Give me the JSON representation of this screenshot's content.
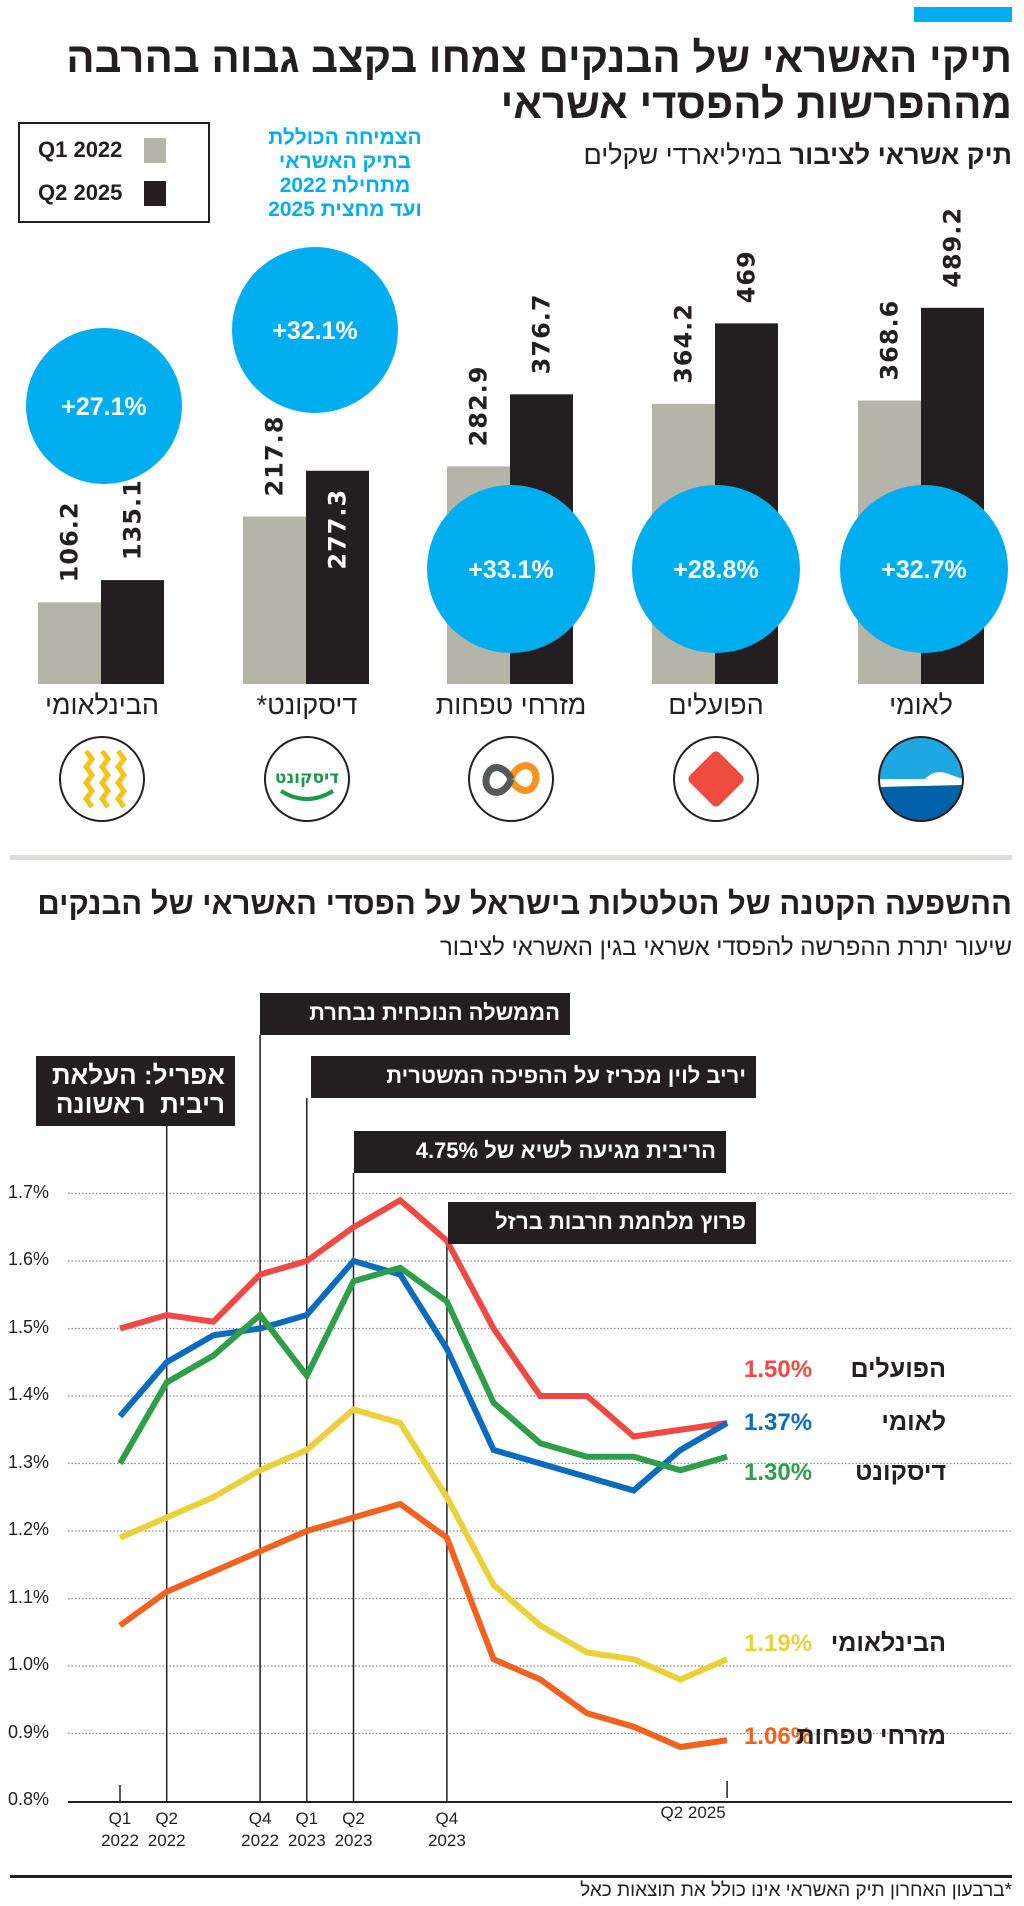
{
  "header": {
    "title_line1": "תיקי האשראי של הבנקים צמחו בקצב גבוה בהרבה",
    "title_line2": "מההפרשות להפסדי אשראי",
    "accent_color": "#00aeef"
  },
  "legend": {
    "items": [
      {
        "label": "Q1 2022",
        "color": "#b4b4a8"
      },
      {
        "label": "Q2 2025",
        "color": "#231f20"
      }
    ]
  },
  "growth_note": [
    "הצמיחה הכוללת",
    "בתיק האשראי",
    "מתחילת 2022",
    "ועד מחצית 2025"
  ],
  "bar_subtitle": {
    "bold": "תיק אשראי לציבור",
    "regular": "במיליארדי שקלים"
  },
  "footnote": "*ברבעון האחרון תיק האשראי אינו כולל את תוצאות כאל",
  "chart_data": [
    {
      "type": "bar",
      "subtitle": "תיק אשראי לציבור במיליארדי שקלים",
      "categories": [
        "לאומי",
        "הפועלים",
        "מזרחי טפחות",
        "דיסקונט*",
        "הבינלאומי"
      ],
      "series": [
        {
          "name": "Q1 2022",
          "values": [
            368.6,
            364.2,
            282.9,
            217.8,
            106.2
          ],
          "labels": [
            "368.6",
            "364.2",
            "282.9",
            "217.8",
            "106.2"
          ],
          "color": "#b4b4a8"
        },
        {
          "name": "Q2 2025",
          "values": [
            489.2,
            469,
            376.7,
            277.3,
            135.1
          ],
          "labels": [
            "489.2",
            "469",
            "376.7",
            "277.3",
            "135.1"
          ],
          "color": "#231f20"
        }
      ],
      "growth_labels": [
        "+32.7%",
        "+28.8%",
        "+33.1%",
        "+32.1%",
        "+27.1%"
      ],
      "logos": [
        {
          "bank": "לאומי",
          "icon": "leumi-wave-logo"
        },
        {
          "bank": "הפועלים",
          "icon": "poalim-red-diamond-logo"
        },
        {
          "bank": "מזרחי טפחות",
          "icon": "mizrahi-infinity-logo"
        },
        {
          "bank": "דיסקונט",
          "icon": "discount-wordmark-logo",
          "lettering": "דיסקונט"
        },
        {
          "bank": "הבינלאומי",
          "icon": "beinleumi-yellow-zigzag-logo"
        }
      ],
      "growth_color": "#00aeef"
    },
    {
      "type": "line",
      "title": "ההשפעה הקטנה של הטלטלות בישראל על הפסדי האשראי של הבנקים",
      "subtitle": "שיעור יתרת ההפרשה להפסדי אשראי בגין האשראי לציבור",
      "x": [
        "Q1 2022",
        "Q2 2022",
        "Q3 2022",
        "Q4 2022",
        "Q1 2023",
        "Q2 2023",
        "Q3 2023",
        "Q4 2023",
        "Q1 2024",
        "Q2 2024",
        "Q3 2024",
        "Q4 2024",
        "Q1 2025",
        "Q2 2025"
      ],
      "x_tick_labels": [
        {
          "q": "Q1",
          "year": "2022",
          "index": 0
        },
        {
          "q": "Q2",
          "year": "2022",
          "index": 1
        },
        {
          "q": "Q4",
          "year": "2022",
          "index": 3
        },
        {
          "q": "Q1",
          "year": "2023",
          "index": 4
        },
        {
          "q": "Q2",
          "year": "2023",
          "index": 5
        },
        {
          "q": "Q4",
          "year": "2023",
          "index": 7
        },
        {
          "q": "Q2 2025",
          "year": "",
          "index": 13
        }
      ],
      "ylim": [
        0.8,
        1.7
      ],
      "y_tick_labels": [
        "0.8%",
        "0.9%",
        "1.0%",
        "1.1%",
        "1.2%",
        "1.3%",
        "1.4%",
        "1.5%",
        "1.6%",
        "1.7%"
      ],
      "y_ticks": [
        0.8,
        0.9,
        1.0,
        1.1,
        1.2,
        1.3,
        1.4,
        1.5,
        1.6,
        1.7
      ],
      "grid": "horizontal dotted",
      "series": [
        {
          "name": "הפועלים",
          "end_label": "1.50%",
          "color": "#ee4a43",
          "values": [
            1.5,
            1.52,
            1.51,
            1.58,
            1.6,
            1.65,
            1.69,
            1.63,
            1.5,
            1.4,
            1.4,
            1.34,
            1.35,
            1.36
          ]
        },
        {
          "name": "לאומי",
          "end_label": "1.37%",
          "color": "#0b6bbf",
          "values": [
            1.37,
            1.45,
            1.49,
            1.5,
            1.52,
            1.6,
            1.58,
            1.47,
            1.32,
            1.3,
            1.28,
            1.26,
            1.32,
            1.36
          ]
        },
        {
          "name": "דיסקונט",
          "end_label": "1.30%",
          "color": "#2e9e48",
          "values": [
            1.3,
            1.42,
            1.46,
            1.52,
            1.43,
            1.57,
            1.59,
            1.54,
            1.39,
            1.33,
            1.31,
            1.31,
            1.29,
            1.31
          ]
        },
        {
          "name": "הבינלאומי",
          "end_label": "1.19%",
          "color": "#ead13b",
          "values": [
            1.19,
            1.22,
            1.25,
            1.29,
            1.32,
            1.38,
            1.36,
            1.25,
            1.12,
            1.06,
            1.02,
            1.01,
            0.98,
            1.01
          ]
        },
        {
          "name": "מזרחי טפחות",
          "end_label": "1.06%",
          "color": "#f1621f",
          "values": [
            1.06,
            1.11,
            1.14,
            1.17,
            1.2,
            1.22,
            1.24,
            1.19,
            1.01,
            0.98,
            0.93,
            0.91,
            0.88,
            0.89
          ]
        }
      ],
      "annotations": [
        {
          "text": [
            "אפריל: העלאת",
            "ריבית  ראשונה"
          ],
          "x": "Q2 2022"
        },
        {
          "text": [
            "הממשלה הנוכחית נבחרת"
          ],
          "x": "Q4 2022"
        },
        {
          "text": [
            "יריב לוין מכריז על ההפיכה המשטרית"
          ],
          "x": "Q1 2023"
        },
        {
          "text": [
            "הריבית מגיעה לשיא של 4.75%"
          ],
          "x": "Q2 2023"
        },
        {
          "text": [
            "פרוץ מלחמת חרבות ברזל"
          ],
          "x": "Q4 2023"
        }
      ]
    }
  ]
}
